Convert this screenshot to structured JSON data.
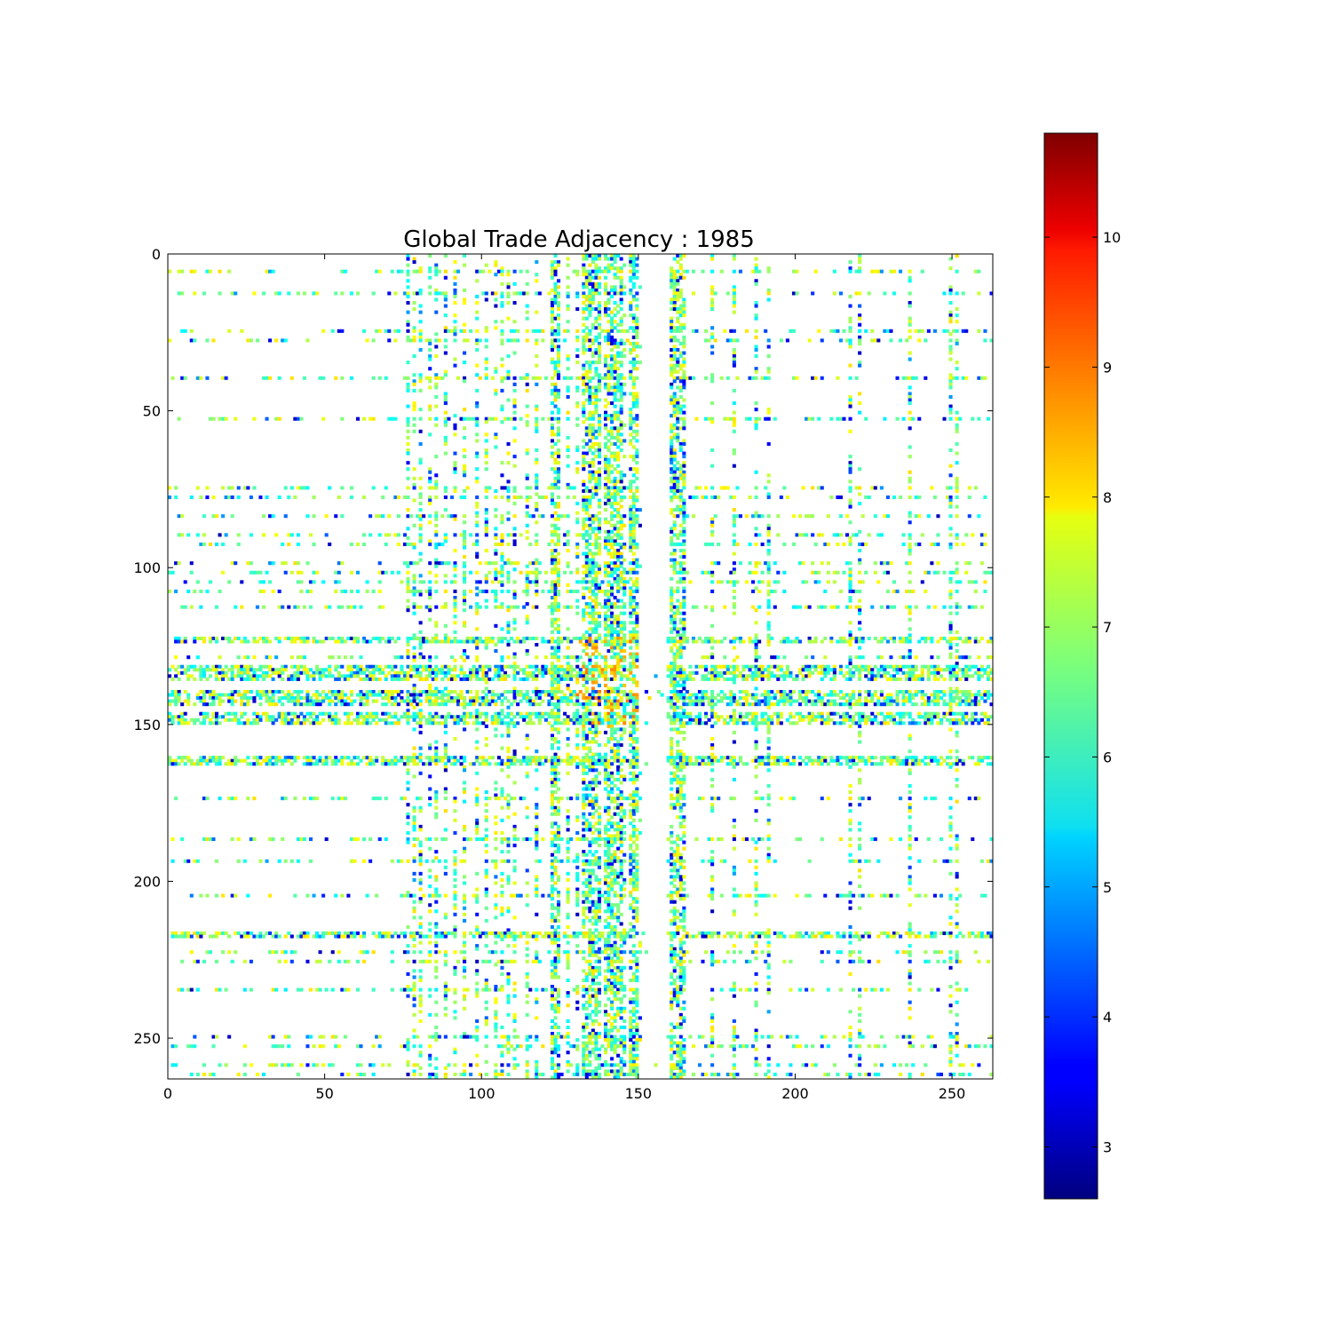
{
  "chart_data": {
    "type": "heatmap",
    "title": "Global Trade Adjacency : 1985",
    "xlabel": "",
    "ylabel": "",
    "matrix_size": 263,
    "xlim": [
      0,
      263
    ],
    "ylim": [
      263,
      0
    ],
    "x_ticks": [
      {
        "value": 0,
        "label": "0"
      },
      {
        "value": 50,
        "label": "50"
      },
      {
        "value": 100,
        "label": "100"
      },
      {
        "value": 150,
        "label": "150"
      },
      {
        "value": 200,
        "label": "200"
      },
      {
        "value": 250,
        "label": "250"
      }
    ],
    "y_ticks": [
      {
        "value": 0,
        "label": "0"
      },
      {
        "value": 50,
        "label": "50"
      },
      {
        "value": 100,
        "label": "100"
      },
      {
        "value": 150,
        "label": "150"
      },
      {
        "value": 200,
        "label": "200"
      },
      {
        "value": 250,
        "label": "250"
      }
    ],
    "colormap": "jet",
    "colorbar": {
      "vmin": 2.6,
      "vmax": 10.8,
      "ticks": [
        {
          "value": 3,
          "label": "3"
        },
        {
          "value": 4,
          "label": "4"
        },
        {
          "value": 5,
          "label": "5"
        },
        {
          "value": 6,
          "label": "6"
        },
        {
          "value": 7,
          "label": "7"
        },
        {
          "value": 8,
          "label": "8"
        },
        {
          "value": 9,
          "label": "9"
        },
        {
          "value": 10,
          "label": "10"
        }
      ]
    },
    "active_rows": [
      5,
      12,
      24,
      27,
      39,
      52,
      74,
      77,
      83,
      89,
      92,
      98,
      101,
      104,
      107,
      112,
      122,
      128,
      131,
      134,
      140,
      143,
      147,
      161,
      173,
      186,
      193,
      204,
      217,
      222,
      225,
      234,
      249,
      252,
      258,
      261
    ],
    "active_cols": [
      76,
      78,
      80,
      83,
      85,
      88,
      91,
      94,
      98,
      101,
      104,
      106,
      108,
      110,
      114,
      117,
      122,
      124,
      127,
      130,
      133,
      135,
      137,
      139,
      141,
      143,
      145,
      148,
      150,
      160,
      162,
      164,
      173,
      180,
      187,
      191,
      217,
      220,
      236,
      249,
      251
    ],
    "dense_row_blocks": [
      [
        122,
        123
      ],
      [
        131,
        135
      ],
      [
        139,
        143
      ],
      [
        146,
        149
      ],
      [
        160,
        162
      ],
      [
        216,
        217
      ]
    ],
    "dense_col_blocks": [
      [
        122,
        124
      ],
      [
        132,
        137
      ],
      [
        139,
        144
      ],
      [
        147,
        150
      ],
      [
        160,
        164
      ]
    ],
    "typical_value_range": [
      5.5,
      8.0
    ],
    "max_value_region": {
      "rows": [
        122,
        150
      ],
      "cols": [
        130,
        150
      ],
      "value": 8.9
    }
  }
}
